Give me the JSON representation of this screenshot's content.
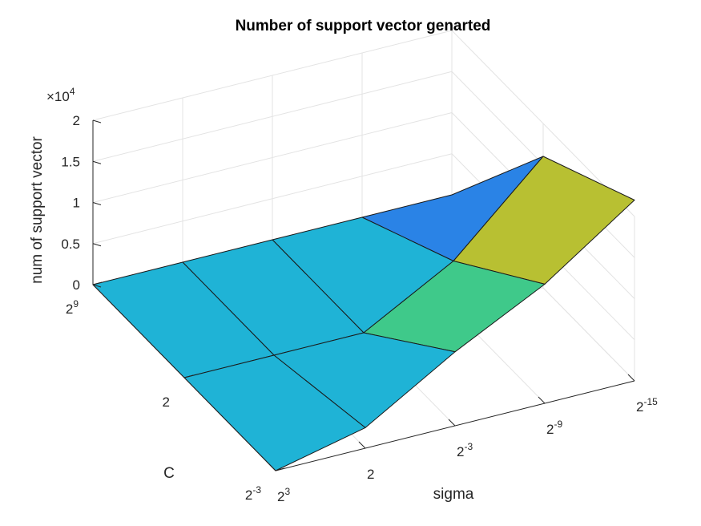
{
  "chart_data": {
    "type": "surface",
    "title": "Number of support vector genarted",
    "xlabel": "sigma",
    "ylabel": "C",
    "zlabel": "num of support vector",
    "z_exponent_label": "×10",
    "z_exponent": "4",
    "sigma_ticks": [
      {
        "base": "2",
        "exp": "3"
      },
      {
        "base": "2",
        "exp": ""
      },
      {
        "base": "2",
        "exp": "-3"
      },
      {
        "base": "2",
        "exp": "-9"
      },
      {
        "base": "2",
        "exp": "-15"
      }
    ],
    "c_ticks": [
      {
        "base": "2",
        "exp": "9"
      },
      {
        "base": "2",
        "exp": ""
      },
      {
        "base": "2",
        "exp": "-3"
      }
    ],
    "z_ticks": [
      "0",
      "0.5",
      "1",
      "1.5",
      "2"
    ],
    "zlim": [
      0,
      20000
    ],
    "sigma_grid_index": [
      0,
      1,
      2,
      3,
      4
    ],
    "c_grid_index": [
      0,
      1,
      2
    ],
    "z_values": [
      [
        0,
        2500,
        9000,
        14500,
        22000
      ],
      [
        0,
        0,
        0,
        6000,
        16000
      ],
      [
        0,
        0,
        0,
        0,
        0
      ]
    ],
    "colormap": [
      "#1fb3d6",
      "#2a83e6",
      "#3fc98a",
      "#b8c032",
      "#f6f21b"
    ],
    "background": "#ffffff",
    "grid": true
  }
}
